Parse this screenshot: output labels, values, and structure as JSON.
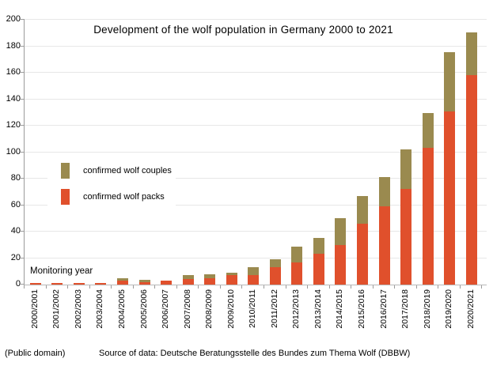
{
  "figure": {
    "monitoring_year_label": "Monitoring year",
    "footer_left": "(Public domain)",
    "footer_source": "Source of data: Deutsche Beratungsstelle des Bundes zum Thema Wolf (DBBW)"
  },
  "colors": {
    "packs": "#e0502c",
    "couples": "#9a8a4f",
    "gridline": "#e7e7e7",
    "axis": "#9b9b9b",
    "background": "#ffffff",
    "text": "#000000"
  },
  "chart_data": {
    "type": "bar",
    "stacked": true,
    "title": "Development of the wolf population in Germany 2000 to 2021",
    "xlabel": "Monitoring year",
    "ylabel": "",
    "ylim": [
      0,
      200
    ],
    "ytick_step": 20,
    "grid": true,
    "legend_position": "middle-left",
    "categories": [
      "2000/2001",
      "2001/2002",
      "2002/2003",
      "2003/2004",
      "2004/2005",
      "2005/2006",
      "2006/2007",
      "2007/2008",
      "2008/2009",
      "2009/2010",
      "2010/2011",
      "2011/2012",
      "2012/2013",
      "2013/2014",
      "2014/2015",
      "2015/2016",
      "2016/2017",
      "2017/2018",
      "2018/2019",
      "2019/2020",
      "2020/2021"
    ],
    "series": [
      {
        "name": "confirmed wolf couples",
        "color": "#9a8a4f",
        "values": [
          0,
          0,
          0,
          0,
          2,
          2,
          0,
          3,
          3,
          2,
          6,
          6,
          12,
          12,
          20,
          21,
          22,
          30,
          26,
          45,
          32
        ]
      },
      {
        "name": "confirmed wolf packs",
        "color": "#e0502c",
        "values": [
          1,
          1,
          1,
          1,
          3,
          2,
          3,
          4,
          5,
          7,
          7,
          13,
          17,
          23,
          30,
          46,
          59,
          72,
          103,
          131,
          158
        ]
      }
    ]
  }
}
